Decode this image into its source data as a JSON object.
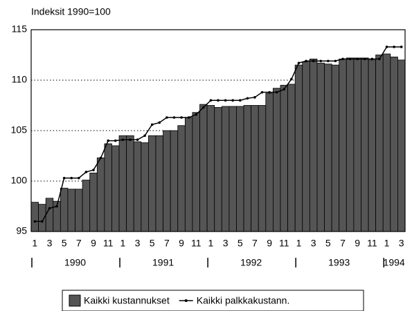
{
  "chart_data": {
    "type": "bar",
    "title": "Indeksit 1990=100",
    "categories": [
      "1",
      null,
      "3",
      null,
      "5",
      null,
      "7",
      null,
      "9",
      null,
      "11",
      null,
      "1",
      null,
      "3",
      null,
      "5",
      null,
      "7",
      null,
      "9",
      null,
      "11",
      null,
      "1",
      null,
      "3",
      null,
      "5",
      null,
      "7",
      null,
      "9",
      null,
      "11",
      null,
      "1",
      null,
      "3",
      null,
      "5",
      null,
      "7",
      null,
      "9",
      null,
      "11",
      null,
      "1",
      null,
      "3"
    ],
    "year_labels": [
      "1990",
      "1991",
      "1992",
      "1993",
      "1994"
    ],
    "series": [
      {
        "name": "Kaikki kustannukset",
        "type": "bar",
        "color": "#555555",
        "values": [
          97.9,
          97.7,
          98.3,
          98.0,
          99.3,
          99.2,
          99.2,
          100.1,
          100.8,
          102.3,
          103.7,
          103.5,
          104.5,
          104.5,
          103.9,
          103.8,
          104.5,
          104.5,
          105.0,
          105.0,
          105.5,
          106.3,
          106.8,
          107.6,
          107.5,
          107.3,
          107.4,
          107.4,
          107.4,
          107.5,
          107.5,
          107.5,
          108.7,
          109.2,
          109.5,
          109.6,
          111.5,
          111.8,
          112.1,
          111.7,
          111.6,
          111.5,
          112.1,
          112.2,
          112.2,
          112.2,
          112.0,
          112.5,
          112.6,
          112.3,
          112.0
        ]
      },
      {
        "name": "Kaikki palkkakustann.",
        "type": "line",
        "color": "#000000",
        "values": [
          96.0,
          96.0,
          97.3,
          97.5,
          100.3,
          100.3,
          100.3,
          100.9,
          101.1,
          102.3,
          104.0,
          104.0,
          104.1,
          104.1,
          104.1,
          104.5,
          105.6,
          105.8,
          106.3,
          106.3,
          106.3,
          106.3,
          106.6,
          107.3,
          108.0,
          108.0,
          108.0,
          108.0,
          108.0,
          108.2,
          108.3,
          108.8,
          108.8,
          108.8,
          109.1,
          110.1,
          111.7,
          111.9,
          111.9,
          111.9,
          111.9,
          111.9,
          112.1,
          112.1,
          112.1,
          112.1,
          112.1,
          112.1,
          113.3,
          113.3,
          113.3
        ]
      }
    ],
    "ylim": [
      95,
      115
    ],
    "yticks": [
      95,
      100,
      105,
      110,
      115
    ],
    "grid": true
  }
}
